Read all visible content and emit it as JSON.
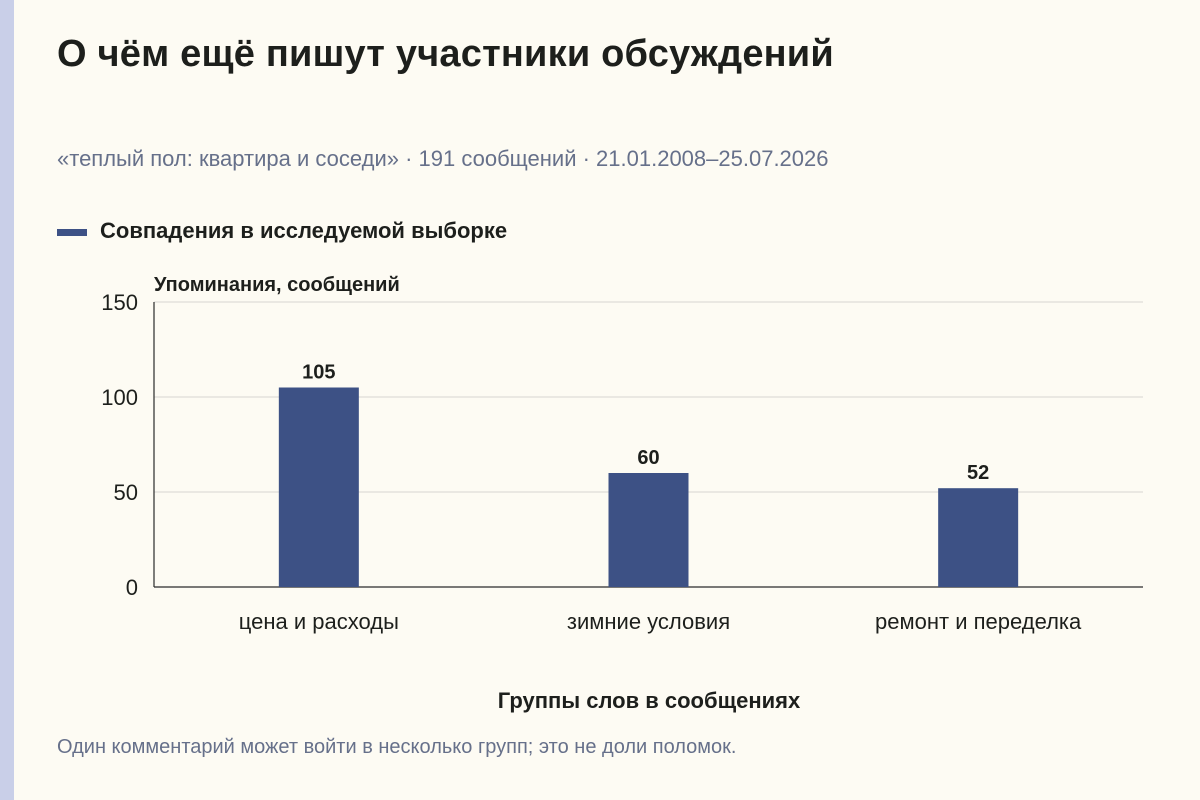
{
  "title": "О чём ещё пишут участники обсуждений",
  "subtitle": "«теплый пол: квартира и соседи» · 191 сообщений · 21.01.2008–25.07.2026",
  "legend": {
    "label": "Совпадения в исследуемой выборке",
    "color": "#3d5185"
  },
  "note": "Один комментарий может войти в несколько групп; это не доли поломок.",
  "chart_data": {
    "type": "bar",
    "title": "О чём ещё пишут участники обсуждений",
    "ylabel": "Упоминания, сообщений",
    "xlabel": "Группы слов в сообщениях",
    "categories": [
      "цена и расходы",
      "зимние условия",
      "ремонт и переделка"
    ],
    "series": [
      {
        "name": "Совпадения в исследуемой выборке",
        "values": [
          105,
          60,
          52
        ],
        "color": "#3d5185"
      }
    ],
    "ylim": [
      0,
      150
    ],
    "yticks": [
      0,
      50,
      100,
      150
    ],
    "grid": true,
    "legend_position": "top-left"
  }
}
